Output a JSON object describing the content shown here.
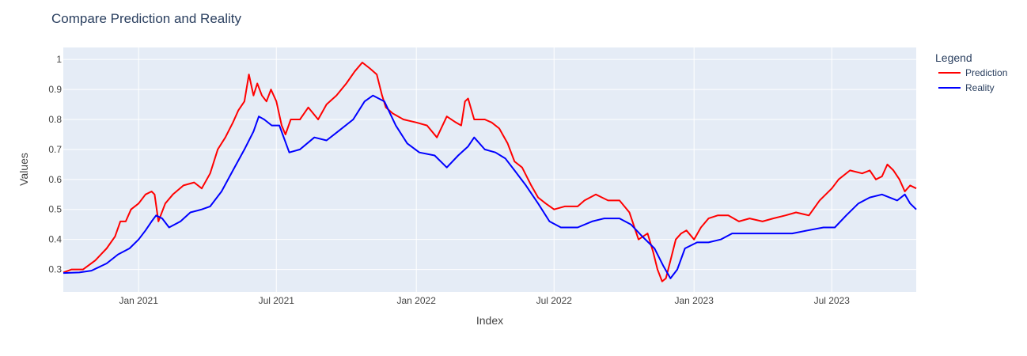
{
  "chart_data": {
    "type": "line",
    "title": "Compare Prediction and Reality",
    "xlabel": "Index",
    "ylabel": "Values",
    "x_range": [
      "2020-09-24",
      "2023-10-20"
    ],
    "ylim": [
      0.225,
      1.04
    ],
    "x_ticks": [
      {
        "date": "2021-01-01",
        "label": "Jan 2021"
      },
      {
        "date": "2021-07-01",
        "label": "Jul 2021"
      },
      {
        "date": "2022-01-01",
        "label": "Jan 2022"
      },
      {
        "date": "2022-07-01",
        "label": "Jul 2022"
      },
      {
        "date": "2023-01-01",
        "label": "Jan 2023"
      },
      {
        "date": "2023-07-01",
        "label": "Jul 2023"
      }
    ],
    "y_ticks": [
      {
        "value": 0.3,
        "label": "0.3"
      },
      {
        "value": 0.4,
        "label": "0.4"
      },
      {
        "value": 0.5,
        "label": "0.5"
      },
      {
        "value": 0.6,
        "label": "0.6"
      },
      {
        "value": 0.7,
        "label": "0.7"
      },
      {
        "value": 0.8,
        "label": "0.8"
      },
      {
        "value": 0.9,
        "label": "0.9"
      },
      {
        "value": 1,
        "label": "1"
      }
    ],
    "legend": {
      "title": "Legend",
      "placement": "right"
    },
    "grid": true,
    "series": [
      {
        "name": "Prediction",
        "color": "#ff0000",
        "points": [
          [
            "2020-09-24",
            0.29
          ],
          [
            "2020-10-05",
            0.3
          ],
          [
            "2020-10-20",
            0.3
          ],
          [
            "2020-11-05",
            0.33
          ],
          [
            "2020-11-20",
            0.37
          ],
          [
            "2020-12-01",
            0.41
          ],
          [
            "2020-12-08",
            0.46
          ],
          [
            "2020-12-15",
            0.46
          ],
          [
            "2020-12-22",
            0.5
          ],
          [
            "2021-01-01",
            0.52
          ],
          [
            "2021-01-10",
            0.55
          ],
          [
            "2021-01-18",
            0.56
          ],
          [
            "2021-01-22",
            0.55
          ],
          [
            "2021-01-27",
            0.46
          ],
          [
            "2021-02-05",
            0.52
          ],
          [
            "2021-02-15",
            0.55
          ],
          [
            "2021-03-01",
            0.58
          ],
          [
            "2021-03-15",
            0.59
          ],
          [
            "2021-03-25",
            0.57
          ],
          [
            "2021-04-05",
            0.62
          ],
          [
            "2021-04-15",
            0.7
          ],
          [
            "2021-04-25",
            0.74
          ],
          [
            "2021-05-05",
            0.79
          ],
          [
            "2021-05-12",
            0.83
          ],
          [
            "2021-05-20",
            0.86
          ],
          [
            "2021-05-26",
            0.95
          ],
          [
            "2021-06-01",
            0.88
          ],
          [
            "2021-06-06",
            0.92
          ],
          [
            "2021-06-12",
            0.88
          ],
          [
            "2021-06-18",
            0.86
          ],
          [
            "2021-06-24",
            0.9
          ],
          [
            "2021-07-01",
            0.86
          ],
          [
            "2021-07-08",
            0.78
          ],
          [
            "2021-07-13",
            0.75
          ],
          [
            "2021-07-20",
            0.8
          ],
          [
            "2021-08-01",
            0.8
          ],
          [
            "2021-08-12",
            0.84
          ],
          [
            "2021-08-25",
            0.8
          ],
          [
            "2021-09-05",
            0.85
          ],
          [
            "2021-09-18",
            0.88
          ],
          [
            "2021-10-01",
            0.92
          ],
          [
            "2021-10-12",
            0.96
          ],
          [
            "2021-10-22",
            0.99
          ],
          [
            "2021-11-01",
            0.97
          ],
          [
            "2021-11-10",
            0.95
          ],
          [
            "2021-11-17",
            0.88
          ],
          [
            "2021-11-22",
            0.84
          ],
          [
            "2021-12-01",
            0.82
          ],
          [
            "2021-12-15",
            0.8
          ],
          [
            "2022-01-01",
            0.79
          ],
          [
            "2022-01-15",
            0.78
          ],
          [
            "2022-01-28",
            0.74
          ],
          [
            "2022-02-10",
            0.81
          ],
          [
            "2022-02-22",
            0.79
          ],
          [
            "2022-03-01",
            0.78
          ],
          [
            "2022-03-06",
            0.86
          ],
          [
            "2022-03-10",
            0.87
          ],
          [
            "2022-03-18",
            0.8
          ],
          [
            "2022-04-01",
            0.8
          ],
          [
            "2022-04-10",
            0.79
          ],
          [
            "2022-04-20",
            0.77
          ],
          [
            "2022-05-01",
            0.72
          ],
          [
            "2022-05-10",
            0.66
          ],
          [
            "2022-05-20",
            0.64
          ],
          [
            "2022-06-01",
            0.58
          ],
          [
            "2022-06-10",
            0.54
          ],
          [
            "2022-06-20",
            0.52
          ],
          [
            "2022-07-01",
            0.5
          ],
          [
            "2022-07-15",
            0.51
          ],
          [
            "2022-08-01",
            0.51
          ],
          [
            "2022-08-10",
            0.53
          ],
          [
            "2022-08-25",
            0.55
          ],
          [
            "2022-09-10",
            0.53
          ],
          [
            "2022-09-25",
            0.53
          ],
          [
            "2022-10-08",
            0.49
          ],
          [
            "2022-10-20",
            0.4
          ],
          [
            "2022-11-01",
            0.42
          ],
          [
            "2022-11-08",
            0.36
          ],
          [
            "2022-11-14",
            0.3
          ],
          [
            "2022-11-20",
            0.26
          ],
          [
            "2022-11-25",
            0.27
          ],
          [
            "2022-12-01",
            0.33
          ],
          [
            "2022-12-08",
            0.4
          ],
          [
            "2022-12-15",
            0.42
          ],
          [
            "2022-12-22",
            0.43
          ],
          [
            "2023-01-01",
            0.4
          ],
          [
            "2023-01-10",
            0.44
          ],
          [
            "2023-01-20",
            0.47
          ],
          [
            "2023-02-01",
            0.48
          ],
          [
            "2023-02-15",
            0.48
          ],
          [
            "2023-03-01",
            0.46
          ],
          [
            "2023-03-15",
            0.47
          ],
          [
            "2023-04-01",
            0.46
          ],
          [
            "2023-04-15",
            0.47
          ],
          [
            "2023-05-01",
            0.48
          ],
          [
            "2023-05-15",
            0.49
          ],
          [
            "2023-06-01",
            0.48
          ],
          [
            "2023-06-15",
            0.53
          ],
          [
            "2023-07-01",
            0.57
          ],
          [
            "2023-07-10",
            0.6
          ],
          [
            "2023-07-25",
            0.63
          ],
          [
            "2023-08-10",
            0.62
          ],
          [
            "2023-08-20",
            0.63
          ],
          [
            "2023-08-28",
            0.6
          ],
          [
            "2023-09-05",
            0.61
          ],
          [
            "2023-09-12",
            0.65
          ],
          [
            "2023-09-20",
            0.63
          ],
          [
            "2023-09-28",
            0.6
          ],
          [
            "2023-10-05",
            0.56
          ],
          [
            "2023-10-12",
            0.58
          ],
          [
            "2023-10-20",
            0.57
          ]
        ]
      },
      {
        "name": "Reality",
        "color": "#0000ff",
        "points": [
          [
            "2020-09-24",
            0.288
          ],
          [
            "2020-10-15",
            0.29
          ],
          [
            "2020-10-31",
            0.296
          ],
          [
            "2020-11-20",
            0.32
          ],
          [
            "2020-12-05",
            0.35
          ],
          [
            "2020-12-20",
            0.37
          ],
          [
            "2021-01-01",
            0.4
          ],
          [
            "2021-01-10",
            0.43
          ],
          [
            "2021-01-18",
            0.46
          ],
          [
            "2021-01-24",
            0.48
          ],
          [
            "2021-02-01",
            0.47
          ],
          [
            "2021-02-10",
            0.44
          ],
          [
            "2021-02-25",
            0.46
          ],
          [
            "2021-03-10",
            0.49
          ],
          [
            "2021-03-25",
            0.5
          ],
          [
            "2021-04-05",
            0.51
          ],
          [
            "2021-04-20",
            0.56
          ],
          [
            "2021-05-05",
            0.63
          ],
          [
            "2021-05-20",
            0.7
          ],
          [
            "2021-06-01",
            0.76
          ],
          [
            "2021-06-08",
            0.81
          ],
          [
            "2021-06-15",
            0.8
          ],
          [
            "2021-06-25",
            0.78
          ],
          [
            "2021-07-05",
            0.78
          ],
          [
            "2021-07-18",
            0.69
          ],
          [
            "2021-08-01",
            0.7
          ],
          [
            "2021-08-20",
            0.74
          ],
          [
            "2021-09-05",
            0.73
          ],
          [
            "2021-09-20",
            0.76
          ],
          [
            "2021-10-10",
            0.8
          ],
          [
            "2021-10-25",
            0.86
          ],
          [
            "2021-11-05",
            0.88
          ],
          [
            "2021-11-20",
            0.86
          ],
          [
            "2021-12-05",
            0.78
          ],
          [
            "2021-12-20",
            0.72
          ],
          [
            "2022-01-05",
            0.69
          ],
          [
            "2022-01-25",
            0.68
          ],
          [
            "2022-02-10",
            0.64
          ],
          [
            "2022-02-25",
            0.68
          ],
          [
            "2022-03-10",
            0.71
          ],
          [
            "2022-03-18",
            0.74
          ],
          [
            "2022-04-01",
            0.7
          ],
          [
            "2022-04-15",
            0.69
          ],
          [
            "2022-04-28",
            0.67
          ],
          [
            "2022-05-10",
            0.63
          ],
          [
            "2022-05-25",
            0.58
          ],
          [
            "2022-06-10",
            0.52
          ],
          [
            "2022-06-25",
            0.46
          ],
          [
            "2022-07-10",
            0.44
          ],
          [
            "2022-08-01",
            0.44
          ],
          [
            "2022-08-20",
            0.46
          ],
          [
            "2022-09-05",
            0.47
          ],
          [
            "2022-09-25",
            0.47
          ],
          [
            "2022-10-10",
            0.45
          ],
          [
            "2022-10-25",
            0.41
          ],
          [
            "2022-11-10",
            0.37
          ],
          [
            "2022-11-22",
            0.31
          ],
          [
            "2022-12-01",
            0.27
          ],
          [
            "2022-12-10",
            0.3
          ],
          [
            "2022-12-20",
            0.37
          ],
          [
            "2023-01-05",
            0.39
          ],
          [
            "2023-01-20",
            0.39
          ],
          [
            "2023-02-05",
            0.4
          ],
          [
            "2023-02-20",
            0.42
          ],
          [
            "2023-03-10",
            0.42
          ],
          [
            "2023-04-01",
            0.42
          ],
          [
            "2023-04-20",
            0.42
          ],
          [
            "2023-05-10",
            0.42
          ],
          [
            "2023-05-30",
            0.43
          ],
          [
            "2023-06-20",
            0.44
          ],
          [
            "2023-07-05",
            0.44
          ],
          [
            "2023-07-20",
            0.48
          ],
          [
            "2023-08-05",
            0.52
          ],
          [
            "2023-08-20",
            0.54
          ],
          [
            "2023-09-05",
            0.55
          ],
          [
            "2023-09-25",
            0.53
          ],
          [
            "2023-10-05",
            0.55
          ],
          [
            "2023-10-12",
            0.52
          ],
          [
            "2023-10-20",
            0.5
          ]
        ]
      }
    ]
  }
}
